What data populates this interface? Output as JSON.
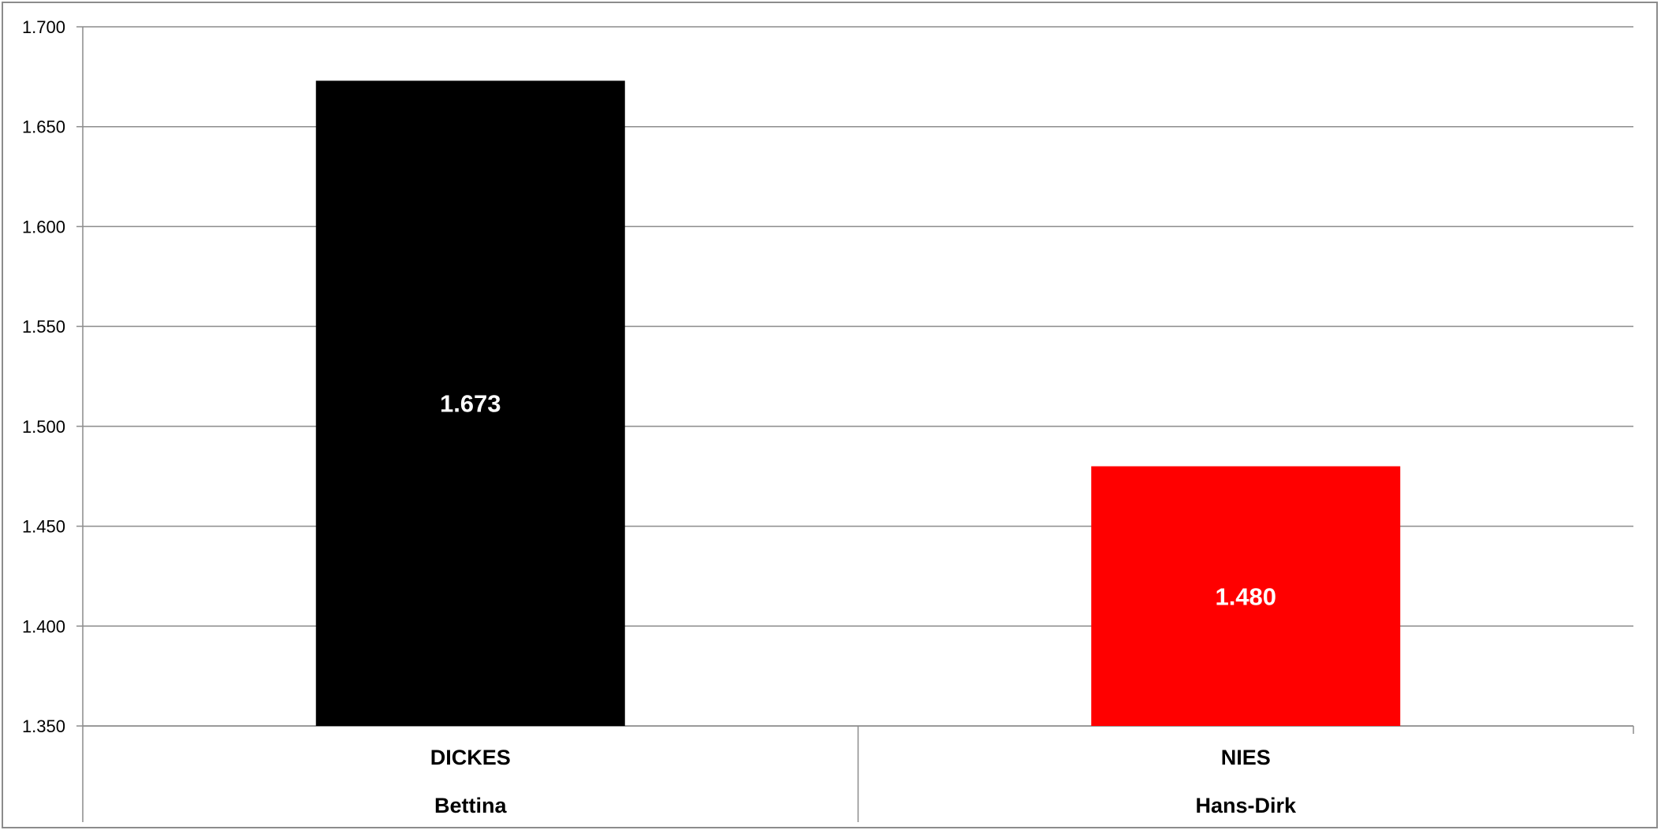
{
  "chart_data": {
    "type": "bar",
    "title": "",
    "xlabel": "",
    "ylabel": "",
    "ylim": [
      1.35,
      1.7
    ],
    "y_ticks": [
      {
        "value": 1.35,
        "label": "1.350"
      },
      {
        "value": 1.4,
        "label": "1.400"
      },
      {
        "value": 1.45,
        "label": "1.450"
      },
      {
        "value": 1.5,
        "label": "1.500"
      },
      {
        "value": 1.55,
        "label": "1.550"
      },
      {
        "value": 1.6,
        "label": "1.600"
      },
      {
        "value": 1.65,
        "label": "1.650"
      },
      {
        "value": 1.7,
        "label": "1.700"
      }
    ],
    "grid": true,
    "legend": "none",
    "categories": [
      {
        "line1": "DICKES",
        "line2": "Bettina"
      },
      {
        "line1": "NIES",
        "line2": "Hans-Dirk"
      }
    ],
    "values": [
      1.673,
      1.48
    ],
    "data_labels": [
      "1.673",
      "1.480"
    ],
    "bar_colors": [
      "#000000",
      "#ff0000"
    ],
    "gridline_color": "#8c8c8c",
    "data_label_color": "#ffffff"
  }
}
